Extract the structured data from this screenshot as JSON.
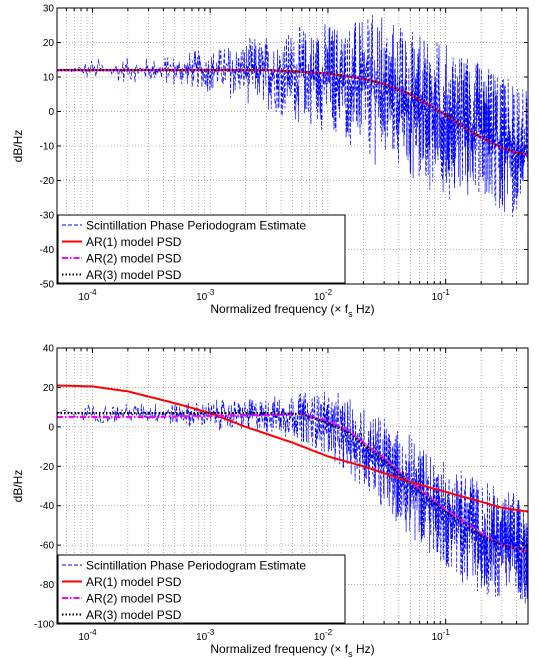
{
  "figure": {
    "background": "#ffffff"
  },
  "chart_data": [
    {
      "type": "line",
      "title": "",
      "xlabel": "Normalized frequency (× f",
      "xlabel_sub": "s",
      "xlabel_tail": " Hz)",
      "ylabel": "dB/Hz",
      "xscale": "log",
      "xlim": [
        5e-05,
        0.5
      ],
      "ylim": [
        -50,
        30
      ],
      "yticks": [
        -50,
        -40,
        -30,
        -20,
        -10,
        0,
        10,
        20,
        30
      ],
      "xticks": [
        {
          "value": 0.0001,
          "base": "10",
          "exp": "-4"
        },
        {
          "value": 0.001,
          "base": "10",
          "exp": "-3"
        },
        {
          "value": 0.01,
          "base": "10",
          "exp": "-2"
        },
        {
          "value": 0.1,
          "base": "10",
          "exp": "-1"
        }
      ],
      "grid": true,
      "legend_position": "bottom-left",
      "series": [
        {
          "name": "Scintillation Phase Periodogram Estimate",
          "color": "#0000ff",
          "style": "dashed",
          "kind": "periodogram",
          "envelope": {
            "x": [
              5e-05,
              0.0001,
              0.0003,
              0.001,
              0.003,
              0.01,
              0.03,
              0.1,
              0.5
            ],
            "center": [
              12,
              12,
              12,
              12,
              11.5,
              10,
              6,
              -2,
              -12
            ],
            "spread": [
              0.5,
              4,
              4,
              7,
              12,
              18,
              24,
              24,
              22
            ]
          }
        },
        {
          "name": "AR(1) model PSD",
          "color": "#ff0000",
          "style": "solid",
          "x": [
            5e-05,
            0.0001,
            0.0003,
            0.001,
            0.003,
            0.006,
            0.01,
            0.02,
            0.03,
            0.05,
            0.08,
            0.1,
            0.15,
            0.2,
            0.3,
            0.4,
            0.5
          ],
          "y": [
            12,
            12,
            12,
            12,
            12,
            11.5,
            11,
            9.5,
            8,
            5,
            1,
            -1,
            -5,
            -7.5,
            -10.5,
            -12,
            -12.5
          ]
        },
        {
          "name": "AR(2) model PSD",
          "color": "#ff00ff",
          "style": "dashdot",
          "x": [
            5e-05,
            0.0001,
            0.0003,
            0.001,
            0.003,
            0.006,
            0.01,
            0.02,
            0.03,
            0.05,
            0.08,
            0.1,
            0.15,
            0.2,
            0.3,
            0.4,
            0.5
          ],
          "y": [
            12,
            12,
            12,
            12,
            12,
            11.5,
            11,
            9.5,
            8,
            5,
            1,
            -1,
            -5,
            -7.5,
            -10.5,
            -12,
            -12.5
          ]
        },
        {
          "name": "AR(3) model PSD",
          "color": "#000000",
          "style": "dotted",
          "x": [
            5e-05,
            0.0001,
            0.0003,
            0.001,
            0.003,
            0.006,
            0.01,
            0.02,
            0.03,
            0.05,
            0.08,
            0.1,
            0.15,
            0.2,
            0.3,
            0.4,
            0.5
          ],
          "y": [
            12,
            12,
            12,
            12,
            12,
            11.5,
            11,
            9.5,
            8,
            5,
            1,
            -1,
            -5,
            -7.5,
            -10.5,
            -12,
            -12.5
          ]
        }
      ]
    },
    {
      "type": "line",
      "title": "",
      "xlabel": "Normalized frequency (× f",
      "xlabel_sub": "s",
      "xlabel_tail": " Hz)",
      "ylabel": "dB/Hz",
      "xscale": "log",
      "xlim": [
        5e-05,
        0.5
      ],
      "ylim": [
        -100,
        40
      ],
      "yticks": [
        -100,
        -80,
        -60,
        -40,
        -20,
        0,
        20,
        40
      ],
      "xticks": [
        {
          "value": 0.0001,
          "base": "10",
          "exp": "-4"
        },
        {
          "value": 0.001,
          "base": "10",
          "exp": "-3"
        },
        {
          "value": 0.01,
          "base": "10",
          "exp": "-2"
        },
        {
          "value": 0.1,
          "base": "10",
          "exp": "-1"
        }
      ],
      "grid": true,
      "legend_position": "bottom-left",
      "series": [
        {
          "name": "Scintillation Phase Periodogram Estimate",
          "color": "#0000ff",
          "style": "dashed",
          "kind": "periodogram",
          "envelope": {
            "x": [
              5e-05,
              0.0001,
              0.0003,
              0.001,
              0.003,
              0.006,
              0.01,
              0.02,
              0.05,
              0.1,
              0.2,
              0.5
            ],
            "center": [
              7,
              7,
              7,
              6,
              6,
              5,
              2,
              -10,
              -30,
              -45,
              -55,
              -63
            ],
            "spread": [
              1,
              6,
              6,
              8,
              10,
              14,
              18,
              24,
              28,
              30,
              32,
              30
            ]
          }
        },
        {
          "name": "AR(1) model PSD",
          "color": "#ff0000",
          "style": "solid",
          "x": [
            5e-05,
            0.0001,
            0.0002,
            0.0005,
            0.001,
            0.002,
            0.005,
            0.01,
            0.02,
            0.05,
            0.1,
            0.2,
            0.3,
            0.5
          ],
          "y": [
            21,
            20.5,
            18,
            12,
            7,
            0,
            -8,
            -15,
            -20,
            -28,
            -33,
            -38,
            -41,
            -43
          ]
        },
        {
          "name": "AR(2) model PSD",
          "color": "#ff00ff",
          "style": "dashdot",
          "x": [
            5e-05,
            0.0001,
            0.0003,
            0.001,
            0.003,
            0.006,
            0.01,
            0.015,
            0.02,
            0.03,
            0.05,
            0.1,
            0.2,
            0.3,
            0.5
          ],
          "y": [
            5,
            5,
            5,
            5.5,
            6,
            6.5,
            3,
            -2,
            -8,
            -16,
            -28,
            -42,
            -54,
            -60,
            -63
          ]
        },
        {
          "name": "AR(3) model PSD",
          "color": "#000000",
          "style": "dotted",
          "x": [
            5e-05,
            0.0001,
            0.0003,
            0.001,
            0.003,
            0.006,
            0.01,
            0.015,
            0.02,
            0.03,
            0.05,
            0.1,
            0.2,
            0.3,
            0.5
          ],
          "y": [
            7,
            7,
            7,
            7,
            7,
            6.5,
            2,
            -3,
            -9,
            -17,
            -29,
            -43,
            -55,
            -60,
            -63
          ]
        }
      ]
    }
  ]
}
